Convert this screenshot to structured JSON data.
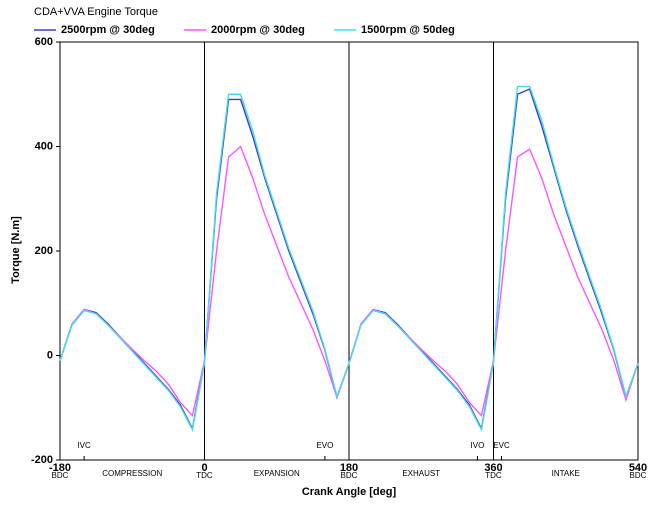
{
  "chart_data": {
    "type": "line",
    "title": "CDA+VVA Engine Torque",
    "x_label": "Crank Angle  [deg]",
    "y_label": "Torque  [N.m]",
    "x": [
      -180,
      -165,
      -150,
      -135,
      -120,
      -105,
      -90,
      -75,
      -60,
      -45,
      -30,
      -15,
      0,
      15,
      30,
      45,
      60,
      75,
      90,
      105,
      120,
      135,
      150,
      165,
      180,
      195,
      210,
      225,
      240,
      255,
      270,
      285,
      300,
      315,
      330,
      345,
      360,
      375,
      390,
      405,
      420,
      435,
      450,
      465,
      480,
      495,
      510,
      525,
      540
    ],
    "series": [
      {
        "name": "2500rpm @ 30deg",
        "color": "#3b3bc8",
        "values": [
          -10,
          60,
          88,
          82,
          60,
          35,
          10,
          -15,
          -40,
          -65,
          -95,
          -140,
          -10,
          300,
          490,
          490,
          420,
          340,
          270,
          200,
          140,
          80,
          10,
          -80,
          -15,
          60,
          88,
          82,
          60,
          35,
          10,
          -15,
          -40,
          -65,
          -95,
          -140,
          -10,
          300,
          500,
          510,
          440,
          360,
          280,
          210,
          145,
          80,
          10,
          -80,
          -15
        ]
      },
      {
        "name": "2000rpm @ 30deg",
        "color": "#ff55ff",
        "values": [
          -10,
          60,
          88,
          80,
          58,
          35,
          12,
          -10,
          -30,
          -55,
          -90,
          -115,
          -10,
          200,
          380,
          400,
          340,
          270,
          210,
          150,
          100,
          50,
          -10,
          -80,
          -15,
          60,
          88,
          80,
          58,
          35,
          12,
          -10,
          -30,
          -55,
          -90,
          -115,
          -10,
          200,
          380,
          395,
          340,
          270,
          210,
          150,
          100,
          50,
          -10,
          -85,
          -15
        ]
      },
      {
        "name": "1500rpm @ 50deg",
        "color": "#44ddee",
        "values": [
          -10,
          58,
          86,
          80,
          58,
          33,
          8,
          -17,
          -42,
          -67,
          -98,
          -142,
          -15,
          310,
          500,
          500,
          430,
          345,
          275,
          205,
          145,
          85,
          12,
          -78,
          -15,
          58,
          86,
          80,
          58,
          33,
          8,
          -17,
          -42,
          -67,
          -98,
          -142,
          -15,
          310,
          515,
          515,
          450,
          365,
          285,
          215,
          150,
          85,
          12,
          -78,
          -15
        ]
      }
    ],
    "xlim": [
      -180,
      540
    ],
    "xticks": [
      -180,
      0,
      180,
      360,
      540
    ],
    "xtick_sublabels": [
      "BDC",
      "TDC",
      "BDC",
      "TDC",
      "BDC"
    ],
    "ylim": [
      -200,
      600
    ],
    "yticks": [
      -200,
      0,
      200,
      400,
      600
    ],
    "phases": [
      "COMPRESSION",
      "EXPANSION",
      "EXHAUST",
      "INTAKE"
    ],
    "events": [
      {
        "label": "IVC",
        "x": -150
      },
      {
        "label": "EVO",
        "x": 150
      },
      {
        "label": "IVO",
        "x": 340
      },
      {
        "label": "EVC",
        "x": 370
      }
    ],
    "grid": true,
    "legend": "top-left"
  }
}
